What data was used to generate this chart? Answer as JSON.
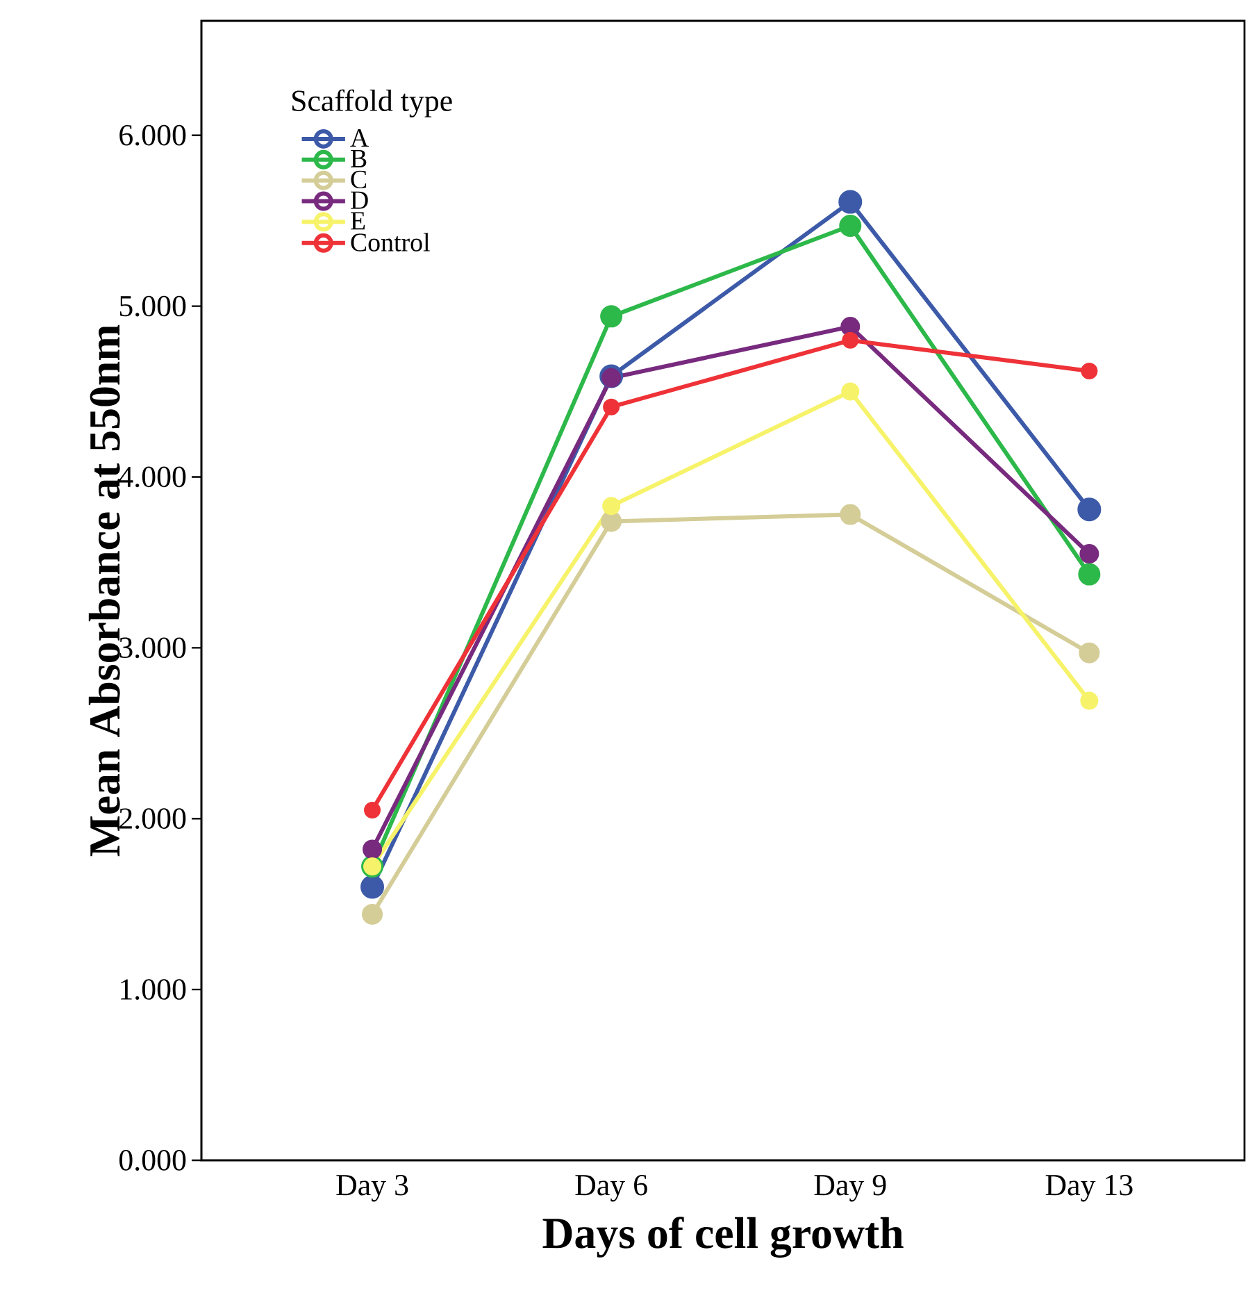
{
  "chart_data": {
    "type": "line",
    "xlabel": "Days of cell growth",
    "ylabel": "Mean Absorbance at 550nm",
    "legend_title": "Scaffold type",
    "categories": [
      "Day 3",
      "Day 6",
      "Day 9",
      "Day 13"
    ],
    "series": [
      {
        "name": "A",
        "color": "#3c5aa8",
        "values": [
          1.6,
          4.59,
          5.61,
          3.81
        ]
      },
      {
        "name": "B",
        "color": "#2db84a",
        "values": [
          1.72,
          4.94,
          5.47,
          3.43
        ]
      },
      {
        "name": "C",
        "color": "#d4cd97",
        "values": [
          1.44,
          3.74,
          3.78,
          2.97
        ]
      },
      {
        "name": "D",
        "color": "#772a7e",
        "values": [
          1.82,
          4.58,
          4.88,
          3.55
        ]
      },
      {
        "name": "E",
        "color": "#f6f36a",
        "values": [
          1.72,
          3.83,
          4.5,
          2.69
        ]
      },
      {
        "name": "Control",
        "color": "#ee3237",
        "values": [
          2.05,
          4.41,
          4.8,
          4.62
        ]
      }
    ],
    "ylim": [
      0,
      6.67
    ],
    "yticks": [
      {
        "value": 0,
        "label": "0.000"
      },
      {
        "value": 1,
        "label": "1.000"
      },
      {
        "value": 2,
        "label": "2.000"
      },
      {
        "value": 3,
        "label": "3.000"
      },
      {
        "value": 4,
        "label": "4.000"
      },
      {
        "value": 5,
        "label": "5.000"
      },
      {
        "value": 6,
        "label": "6.000"
      }
    ],
    "legend": "top left",
    "marker": "circle",
    "line_style": "solid"
  }
}
